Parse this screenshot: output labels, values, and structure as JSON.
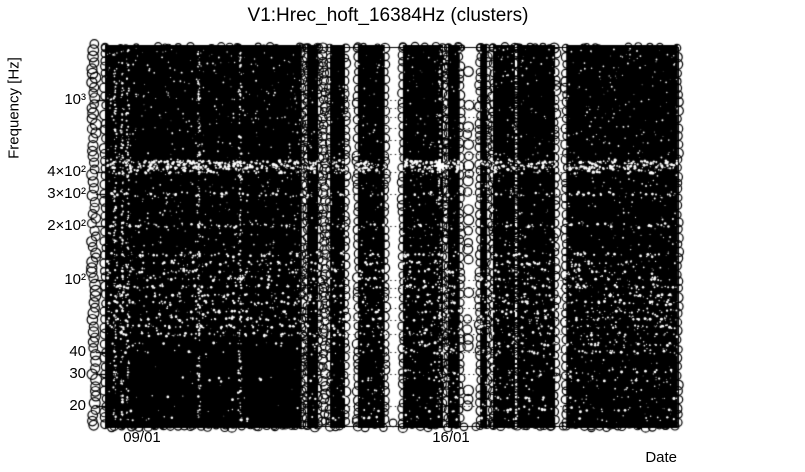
{
  "chart_data": {
    "type": "scatter",
    "title": "V1:Hrec_hoft_16384Hz (clusters)",
    "xlabel": "Date",
    "ylabel": "Frequency [Hz]",
    "marker": {
      "shape": "open-circle",
      "color": "#000000",
      "radius_px": 4
    },
    "background_color": "#ffffff",
    "x_axis": {
      "unit": "date (dd/mm)",
      "ticks": [
        {
          "label": "09/01",
          "day": 1
        },
        {
          "label": "16/01",
          "day": 8
        }
      ],
      "range_days": [
        0.162,
        13.14
      ]
    },
    "y_axis": {
      "scale": "log",
      "range_hz": [
        15,
        2000
      ],
      "ticks": [
        {
          "label": "10³",
          "hz": 1000
        },
        {
          "label": "4×10²",
          "hz": 400
        },
        {
          "label": "3×10²",
          "hz": 300
        },
        {
          "label": "2×10²",
          "hz": 200
        },
        {
          "label": "10²",
          "hz": 100
        },
        {
          "label": "40",
          "hz": 40
        },
        {
          "label": "30",
          "hz": 30
        },
        {
          "label": "20",
          "hz": 20
        }
      ]
    },
    "grid": {
      "style": "dotted",
      "on": true,
      "lines_hz": [
        20,
        30,
        40,
        50,
        60,
        70,
        80,
        90,
        100,
        200,
        300,
        400,
        500,
        600,
        700,
        800,
        900,
        1000
      ]
    },
    "density_description": "near-continuous coverage of overlapping black open-circle cluster markers from ~16 Hz to ~2000 Hz, interrupted by vertical no-data gaps",
    "data_gaps_days": [
      {
        "start_day": 4.62,
        "end_day": 4.74,
        "style": "hairline"
      },
      {
        "start_day": 4.99,
        "end_day": 5.26,
        "style": "cluster-column"
      },
      {
        "start_day": 5.6,
        "end_day": 5.89,
        "style": "clean"
      },
      {
        "start_day": 6.5,
        "end_day": 6.91,
        "style": "clean"
      },
      {
        "start_day": 7.82,
        "end_day": 7.93,
        "style": "hairline"
      },
      {
        "start_day": 8.2,
        "end_day": 8.66,
        "style": "cluster-column"
      },
      {
        "start_day": 8.82,
        "end_day": 8.95,
        "style": "clean"
      },
      {
        "start_day": 9.45,
        "end_day": 9.5,
        "style": "hairline"
      },
      {
        "start_day": 10.36,
        "end_day": 10.61,
        "style": "clean"
      }
    ],
    "isolated_cluster_columns_days": [
      {
        "day": 5.12,
        "style": "dense-chain"
      },
      {
        "day": 8.39,
        "style": "chain-with-breaks"
      }
    ],
    "pre_axis_cluster_column_day": -0.09,
    "low_density_rows_hz": [
      452,
      423,
      200,
      300,
      138,
      124,
      112,
      102,
      92,
      82,
      75,
      67,
      61,
      55,
      50,
      44,
      40,
      31,
      28,
      22,
      19,
      17
    ],
    "low_density_column_seams_days": [
      0.39,
      0.55,
      0.68,
      2.29,
      3.22,
      7.75
    ],
    "sparkle_artifacts": [
      {
        "day": 7.75,
        "hz": 430
      }
    ]
  }
}
